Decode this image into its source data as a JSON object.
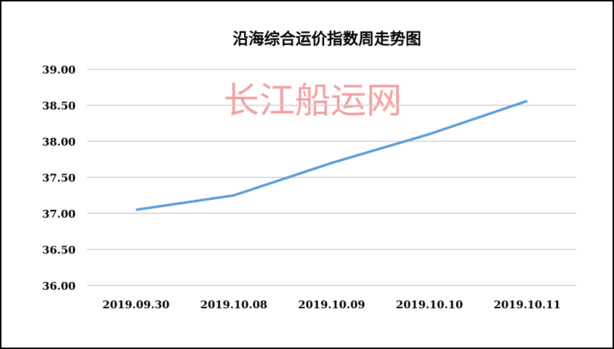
{
  "chart_data": {
    "type": "line",
    "title": "沿海综合运价指数周走势图",
    "watermark": "长江船运网",
    "categories": [
      "2019.09.30",
      "2019.10.08",
      "2019.10.09",
      "2019.10.10",
      "2019.10.11"
    ],
    "series": [
      {
        "values": [
          37.05,
          37.25,
          37.7,
          38.1,
          38.56
        ],
        "color": "#5b9bd5"
      }
    ],
    "ylim": [
      36,
      39
    ],
    "yticks": [
      "36.00",
      "36.50",
      "37.00",
      "37.50",
      "38.00",
      "38.50",
      "39.00"
    ],
    "grid": true,
    "legend": "none"
  }
}
